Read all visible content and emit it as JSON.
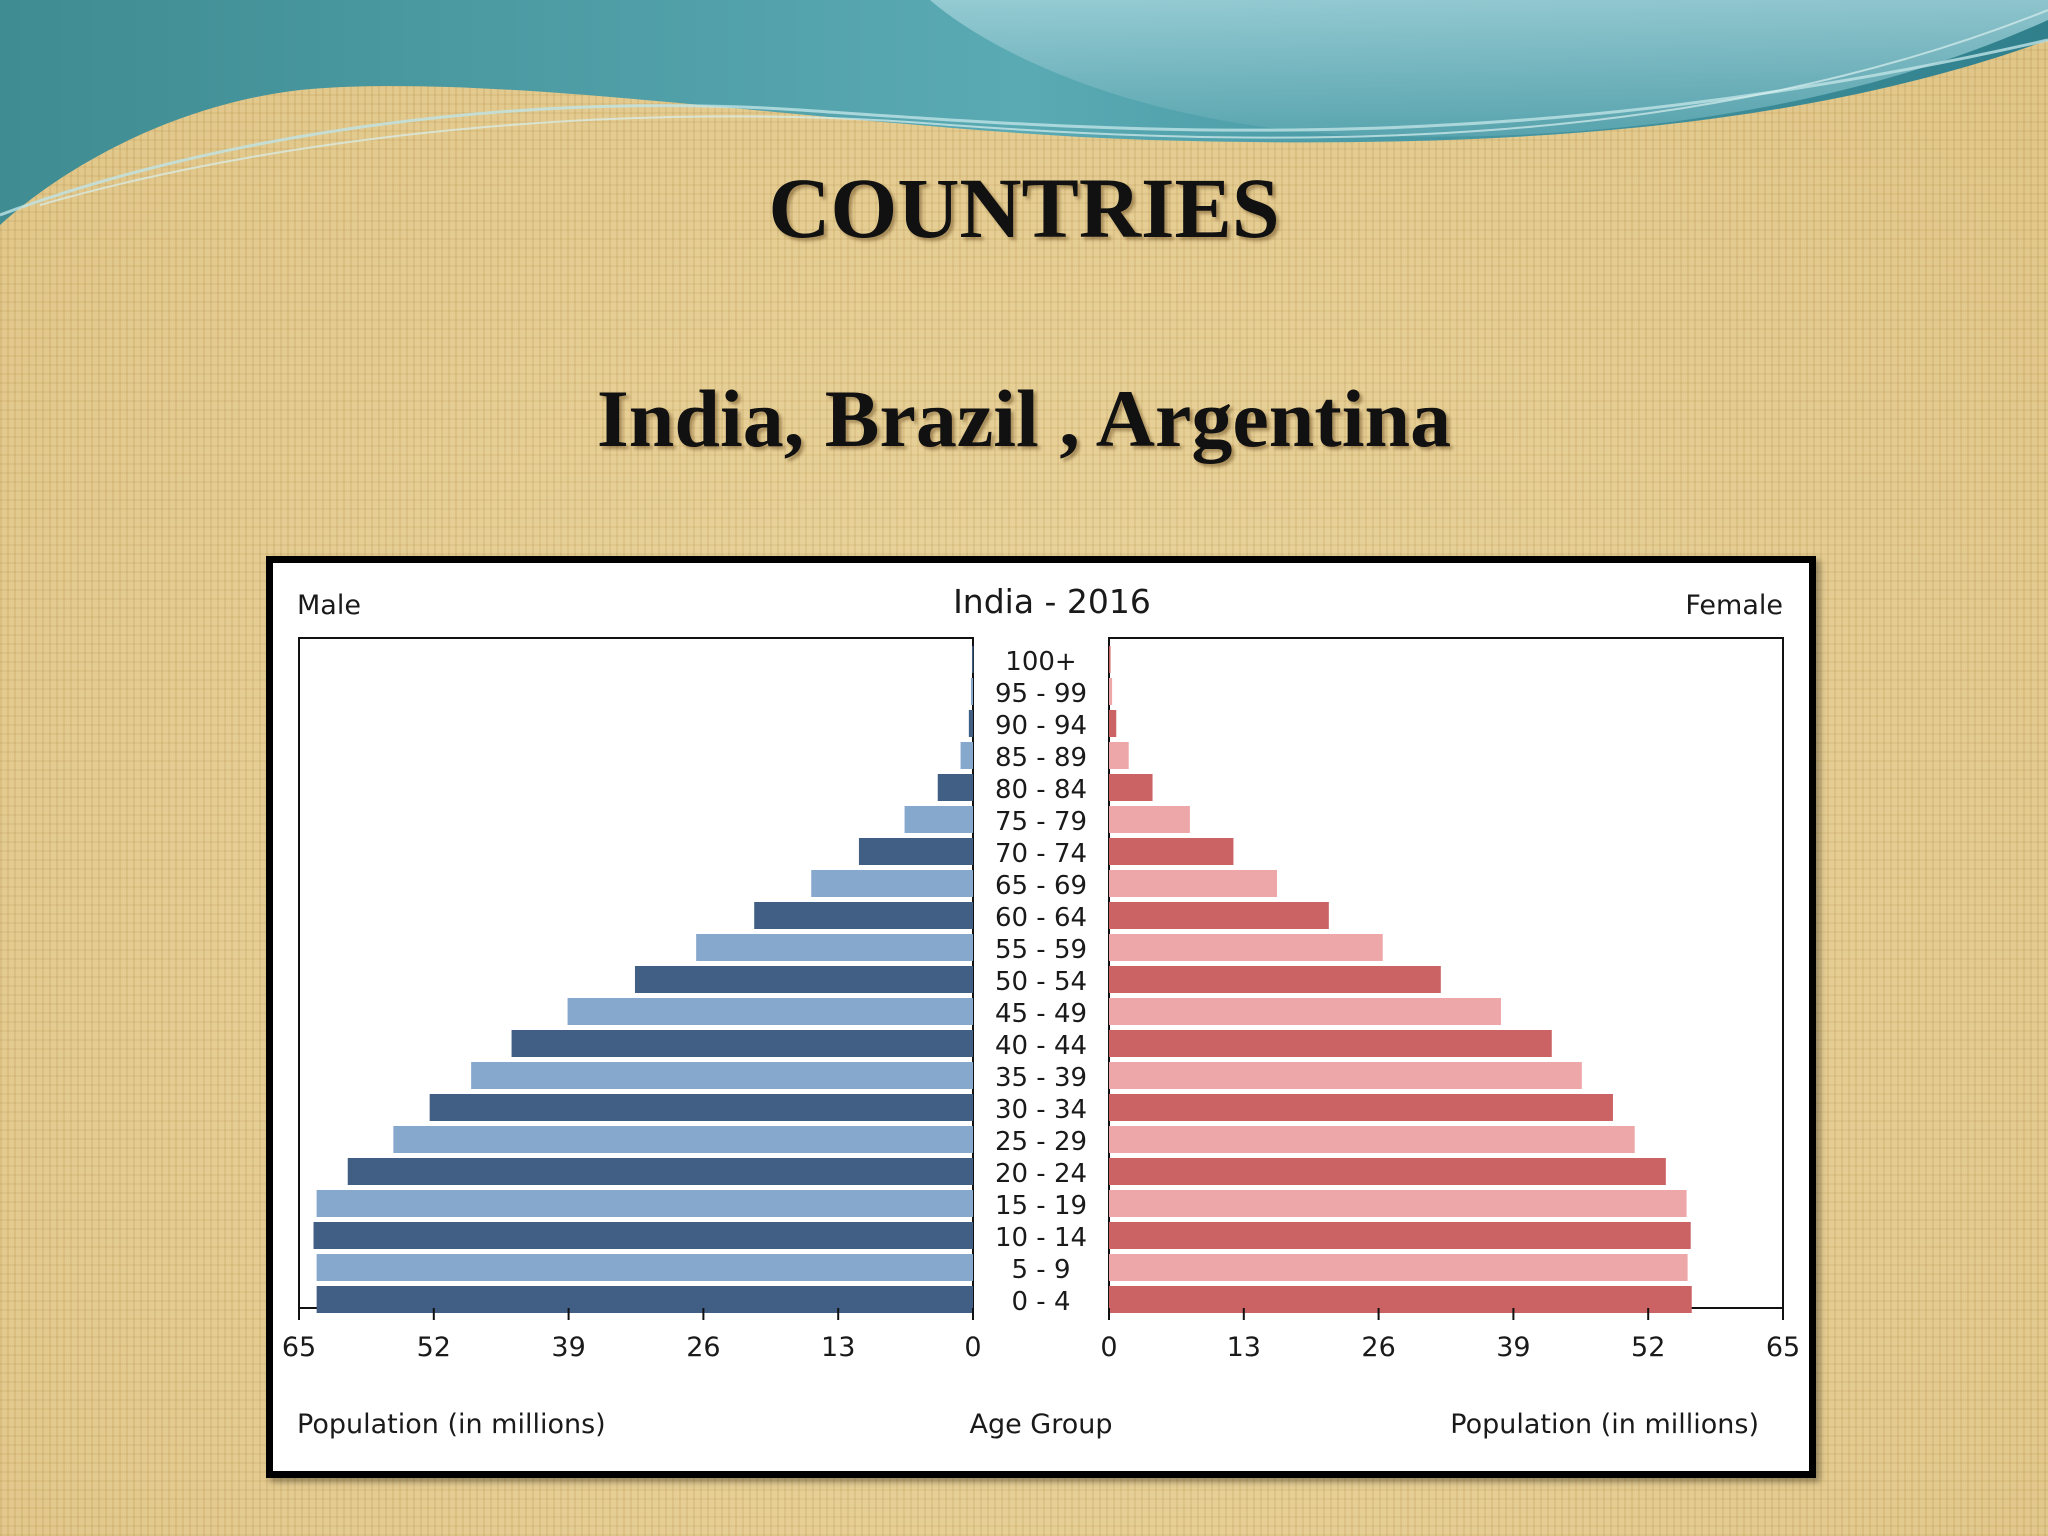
{
  "slide": {
    "title": "COUNTRIES",
    "subtitle": "India, Brazil , Argentina"
  },
  "chart_data": {
    "type": "bar",
    "orientation": "horizontal-pyramid",
    "title": "India - 2016",
    "left_label": "Male",
    "right_label": "Female",
    "center_axis_label": "Age Group",
    "xlabel_left": "Population (in millions)",
    "xlabel_right": "Population (in millions)",
    "xlim": [
      0,
      65
    ],
    "ticks": [
      "0",
      "13",
      "26",
      "39",
      "52",
      "65"
    ],
    "categories": [
      "100+",
      "95 - 99",
      "90 - 94",
      "85 - 89",
      "80 - 84",
      "75 - 79",
      "70 - 74",
      "65 - 69",
      "60 - 64",
      "55 - 59",
      "50 - 54",
      "45 - 49",
      "40 - 44",
      "35 - 39",
      "30 - 34",
      "25 - 29",
      "20 - 24",
      "15 - 19",
      "10 - 14",
      "5 - 9",
      "0 - 4"
    ],
    "series": [
      {
        "name": "Male",
        "values": [
          0.1,
          0.2,
          0.4,
          1.2,
          3.4,
          6.6,
          11.0,
          15.6,
          21.1,
          26.7,
          32.6,
          39.1,
          44.5,
          48.4,
          52.4,
          55.9,
          60.3,
          63.3,
          63.6,
          63.3,
          63.3
        ]
      },
      {
        "name": "Female",
        "values": [
          0.1,
          0.3,
          0.7,
          1.9,
          4.2,
          7.8,
          12.0,
          16.2,
          21.2,
          26.4,
          32.0,
          37.8,
          42.7,
          45.6,
          48.6,
          50.7,
          53.7,
          55.7,
          56.1,
          55.8,
          56.2
        ]
      }
    ],
    "colors": {
      "male_dark": "#415e84",
      "male_light": "#87a8cd",
      "female_dark": "#cb6264",
      "female_light": "#eea7a8"
    },
    "legend": "none",
    "grid": false
  }
}
